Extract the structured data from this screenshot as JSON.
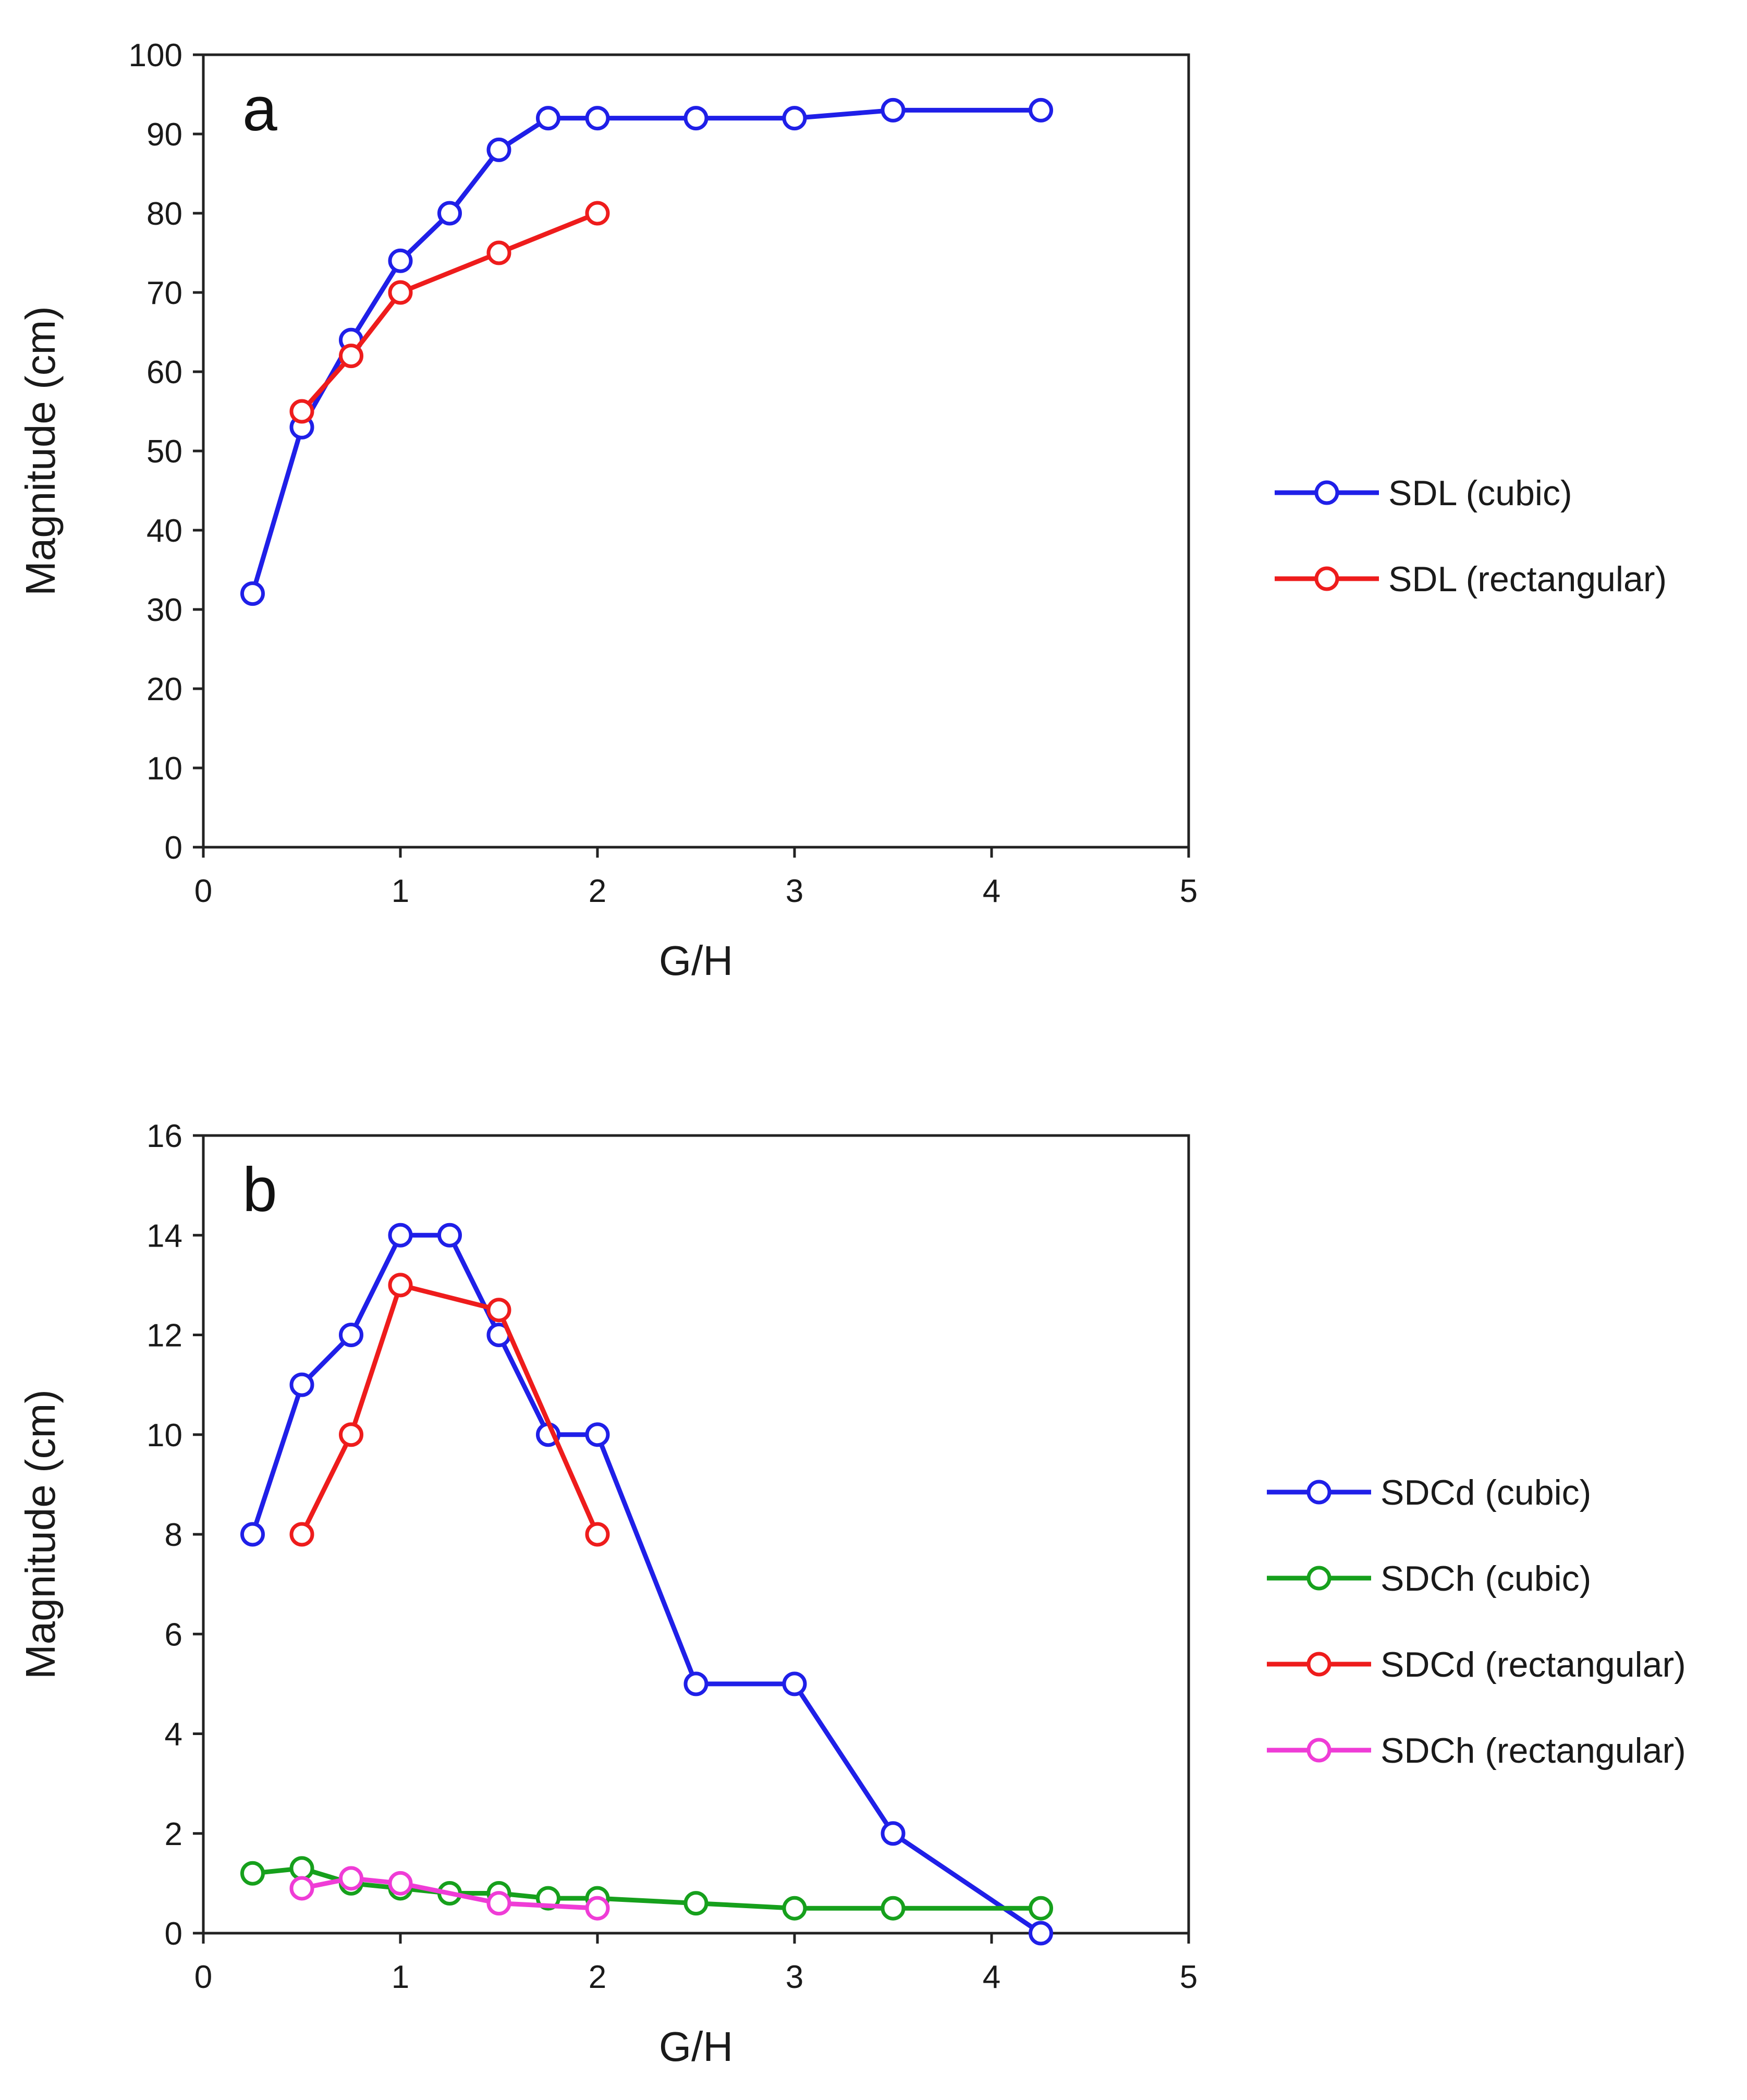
{
  "chart_data": [
    {
      "type": "line",
      "panel_label": "a",
      "xlabel": "G/H",
      "ylabel": "Magnitude (cm)",
      "xlim": [
        0,
        5
      ],
      "ylim": [
        0,
        100
      ],
      "xticks": [
        0,
        1,
        2,
        3,
        4,
        5
      ],
      "yticks": [
        0,
        10,
        20,
        30,
        40,
        50,
        60,
        70,
        80,
        90,
        100
      ],
      "grid": false,
      "legend_position": "right",
      "series": [
        {
          "name": "SDL (cubic)",
          "color": "#1f1fe8",
          "marker": "open-circle",
          "x": [
            0.25,
            0.5,
            0.75,
            1.0,
            1.25,
            1.5,
            1.75,
            2.0,
            2.5,
            3.0,
            3.5,
            4.25
          ],
          "y": [
            32,
            53,
            64,
            74,
            80,
            88,
            92,
            92,
            92,
            92,
            93,
            93
          ]
        },
        {
          "name": "SDL (rectangular)",
          "color": "#ee1c1c",
          "marker": "open-circle",
          "x": [
            0.5,
            0.75,
            1.0,
            1.5,
            2.0
          ],
          "y": [
            55,
            62,
            70,
            75,
            80
          ]
        }
      ]
    },
    {
      "type": "line",
      "panel_label": "b",
      "xlabel": "G/H",
      "ylabel": "Magnitude (cm)",
      "xlim": [
        0,
        5
      ],
      "ylim": [
        0,
        16
      ],
      "xticks": [
        0,
        1,
        2,
        3,
        4,
        5
      ],
      "yticks": [
        0,
        2,
        4,
        6,
        8,
        10,
        12,
        14,
        16
      ],
      "grid": false,
      "legend_position": "right",
      "series": [
        {
          "name": "SDCd (cubic)",
          "color": "#1f1fe8",
          "marker": "open-circle",
          "x": [
            0.25,
            0.5,
            0.75,
            1.0,
            1.25,
            1.5,
            1.75,
            2.0,
            2.5,
            3.0,
            3.5,
            4.25
          ],
          "y": [
            8,
            11,
            12,
            14,
            14,
            12,
            10,
            10,
            5,
            5,
            2,
            0
          ]
        },
        {
          "name": "SDCh (cubic)",
          "color": "#16a01c",
          "marker": "open-circle",
          "x": [
            0.25,
            0.5,
            0.75,
            1.0,
            1.25,
            1.5,
            1.75,
            2.0,
            2.5,
            3.0,
            3.5,
            4.25
          ],
          "y": [
            1.2,
            1.3,
            1.0,
            0.9,
            0.8,
            0.8,
            0.7,
            0.7,
            0.6,
            0.5,
            0.5,
            0.5
          ]
        },
        {
          "name": "SDCd (rectangular)",
          "color": "#ee1c1c",
          "marker": "open-circle",
          "x": [
            0.5,
            0.75,
            1.0,
            1.5,
            2.0
          ],
          "y": [
            8,
            10,
            13,
            12.5,
            8
          ]
        },
        {
          "name": "SDCh (rectangular)",
          "color": "#ef3cd6",
          "marker": "open-circle",
          "x": [
            0.5,
            0.75,
            1.0,
            1.5,
            2.0
          ],
          "y": [
            0.9,
            1.1,
            1.0,
            0.6,
            0.5
          ]
        }
      ]
    }
  ]
}
